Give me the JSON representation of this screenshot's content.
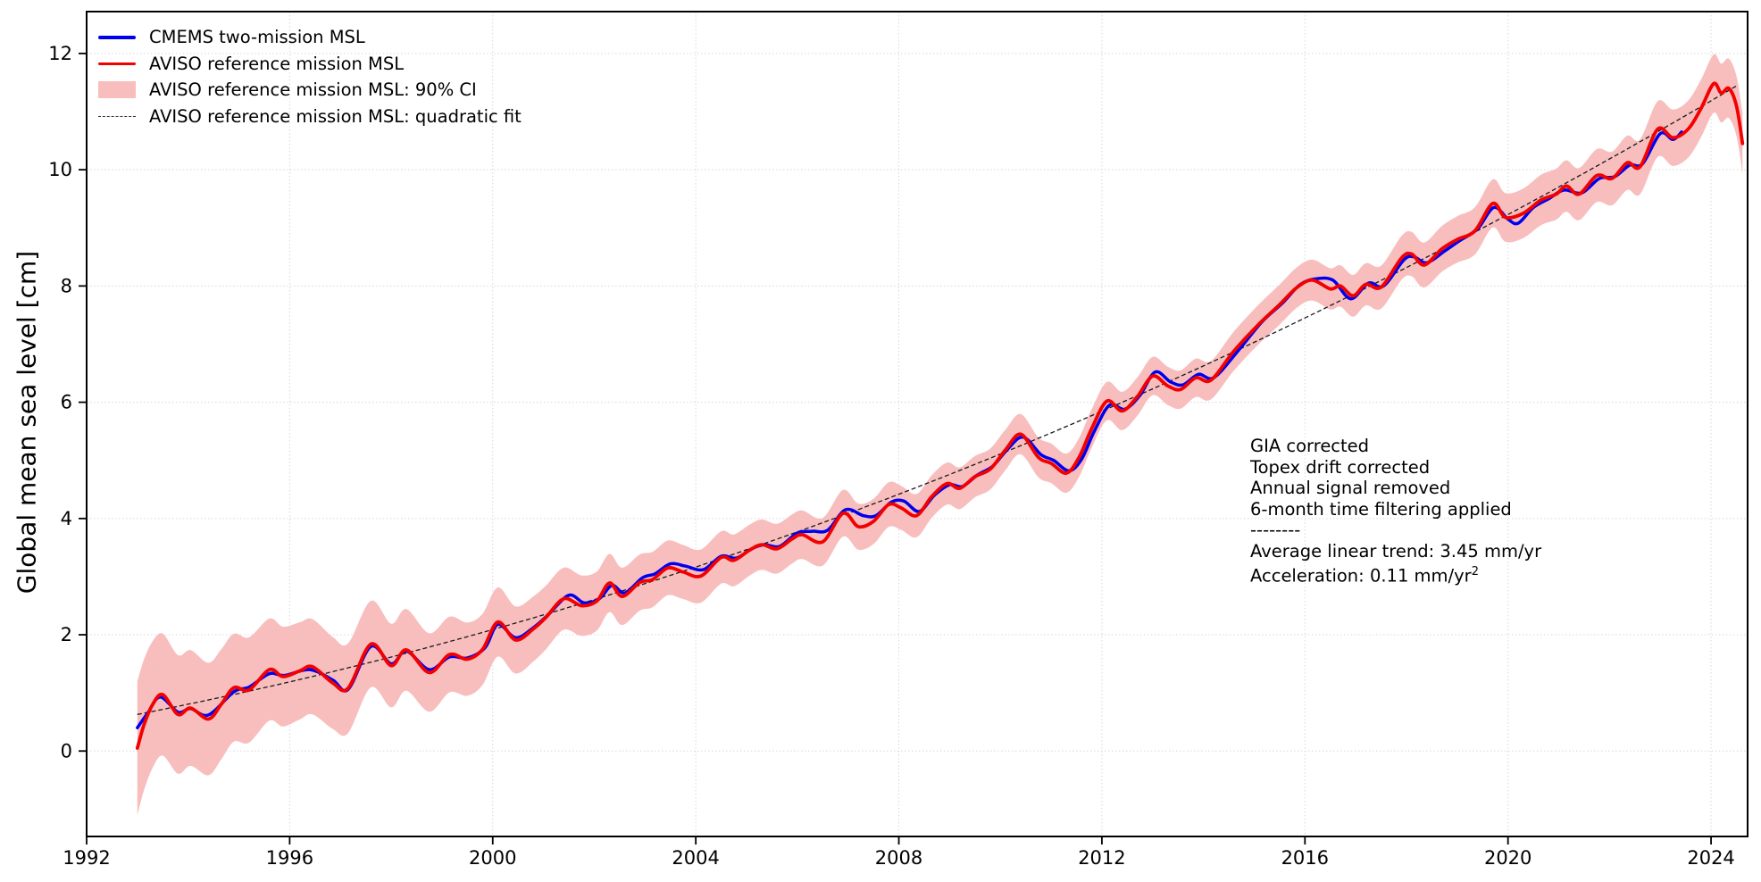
{
  "chart_data": {
    "type": "line",
    "title": "",
    "xlabel": "",
    "ylabel": "Global mean sea level [cm]",
    "xlim": [
      1992,
      2024.72
    ],
    "ylim": [
      -1.47,
      12.72
    ],
    "x_ticks": [
      1992,
      1996,
      2000,
      2004,
      2008,
      2012,
      2016,
      2020,
      2024
    ],
    "y_ticks": [
      0,
      2,
      4,
      6,
      8,
      10,
      12
    ],
    "grid": "dotted",
    "legend_position": "upper-left",
    "style": {
      "cmems_color": "#0000ee",
      "aviso_color": "#f30000",
      "ci_color": "#f8bebe",
      "fit_color": "#1a1a1a",
      "grid_color": "#d8d8d8",
      "spine_color": "#000000"
    },
    "series": [
      {
        "name": "CMEMS two-mission MSL",
        "type": "line",
        "color": "#0000ee",
        "points": [
          [
            1993.0,
            0.4
          ],
          [
            1993.2,
            0.65
          ],
          [
            1993.45,
            0.93
          ],
          [
            1993.8,
            0.67
          ],
          [
            1994.05,
            0.73
          ],
          [
            1994.4,
            0.62
          ],
          [
            1994.9,
            1.02
          ],
          [
            1995.2,
            1.1
          ],
          [
            1995.6,
            1.33
          ],
          [
            1995.9,
            1.3
          ],
          [
            1996.4,
            1.4
          ],
          [
            1996.85,
            1.22
          ],
          [
            1997.15,
            1.06
          ],
          [
            1997.6,
            1.8
          ],
          [
            1998.0,
            1.5
          ],
          [
            1998.3,
            1.72
          ],
          [
            1998.75,
            1.4
          ],
          [
            1999.15,
            1.62
          ],
          [
            1999.5,
            1.6
          ],
          [
            1999.85,
            1.78
          ],
          [
            2000.1,
            2.18
          ],
          [
            2000.45,
            1.95
          ],
          [
            2000.8,
            2.12
          ],
          [
            2001.1,
            2.35
          ],
          [
            2001.5,
            2.68
          ],
          [
            2001.8,
            2.55
          ],
          [
            2002.1,
            2.62
          ],
          [
            2002.35,
            2.85
          ],
          [
            2002.6,
            2.72
          ],
          [
            2002.95,
            2.98
          ],
          [
            2003.2,
            3.05
          ],
          [
            2003.5,
            3.22
          ],
          [
            2003.8,
            3.18
          ],
          [
            2004.15,
            3.12
          ],
          [
            2004.5,
            3.35
          ],
          [
            2004.8,
            3.32
          ],
          [
            2005.1,
            3.48
          ],
          [
            2005.35,
            3.55
          ],
          [
            2005.65,
            3.52
          ],
          [
            2006.0,
            3.75
          ],
          [
            2006.3,
            3.78
          ],
          [
            2006.6,
            3.8
          ],
          [
            2006.95,
            4.15
          ],
          [
            2007.3,
            4.05
          ],
          [
            2007.55,
            4.05
          ],
          [
            2007.85,
            4.28
          ],
          [
            2008.1,
            4.3
          ],
          [
            2008.4,
            4.12
          ],
          [
            2008.7,
            4.4
          ],
          [
            2009.0,
            4.58
          ],
          [
            2009.25,
            4.55
          ],
          [
            2009.55,
            4.75
          ],
          [
            2009.85,
            4.9
          ],
          [
            2010.15,
            5.2
          ],
          [
            2010.45,
            5.4
          ],
          [
            2010.8,
            5.1
          ],
          [
            2011.05,
            5.0
          ],
          [
            2011.35,
            4.82
          ],
          [
            2011.6,
            5.02
          ],
          [
            2011.85,
            5.5
          ],
          [
            2012.15,
            5.95
          ],
          [
            2012.45,
            5.88
          ],
          [
            2012.75,
            6.12
          ],
          [
            2013.05,
            6.52
          ],
          [
            2013.35,
            6.35
          ],
          [
            2013.6,
            6.3
          ],
          [
            2013.9,
            6.48
          ],
          [
            2014.2,
            6.42
          ],
          [
            2014.65,
            6.85
          ],
          [
            2015.15,
            7.38
          ],
          [
            2015.55,
            7.7
          ],
          [
            2015.9,
            8.02
          ],
          [
            2016.2,
            8.12
          ],
          [
            2016.55,
            8.1
          ],
          [
            2016.9,
            7.78
          ],
          [
            2017.25,
            8.05
          ],
          [
            2017.55,
            8.0
          ],
          [
            2017.95,
            8.45
          ],
          [
            2018.15,
            8.5
          ],
          [
            2018.4,
            8.4
          ],
          [
            2018.75,
            8.6
          ],
          [
            2019.05,
            8.78
          ],
          [
            2019.4,
            8.98
          ],
          [
            2019.72,
            9.35
          ],
          [
            2020.0,
            9.15
          ],
          [
            2020.2,
            9.08
          ],
          [
            2020.5,
            9.35
          ],
          [
            2020.8,
            9.5
          ],
          [
            2021.1,
            9.65
          ],
          [
            2021.45,
            9.6
          ],
          [
            2021.8,
            9.85
          ],
          [
            2022.1,
            9.88
          ],
          [
            2022.4,
            10.08
          ],
          [
            2022.65,
            10.1
          ],
          [
            2023.0,
            10.62
          ],
          [
            2023.25,
            10.52
          ],
          [
            2023.42,
            10.65
          ]
        ]
      },
      {
        "name": "AVISO reference mission MSL",
        "type": "line",
        "color": "#f30000",
        "points": [
          [
            1993.0,
            0.05
          ],
          [
            1993.13,
            0.45
          ],
          [
            1993.3,
            0.8
          ],
          [
            1993.5,
            0.97
          ],
          [
            1993.8,
            0.63
          ],
          [
            1994.05,
            0.74
          ],
          [
            1994.4,
            0.55
          ],
          [
            1994.65,
            0.8
          ],
          [
            1994.9,
            1.09
          ],
          [
            1995.2,
            1.05
          ],
          [
            1995.6,
            1.4
          ],
          [
            1995.87,
            1.28
          ],
          [
            1996.2,
            1.38
          ],
          [
            1996.45,
            1.45
          ],
          [
            1996.85,
            1.17
          ],
          [
            1997.15,
            1.08
          ],
          [
            1997.6,
            1.84
          ],
          [
            1998.0,
            1.47
          ],
          [
            1998.3,
            1.74
          ],
          [
            1998.75,
            1.35
          ],
          [
            1999.15,
            1.66
          ],
          [
            1999.5,
            1.58
          ],
          [
            1999.8,
            1.75
          ],
          [
            2000.1,
            2.22
          ],
          [
            2000.45,
            1.91
          ],
          [
            2000.8,
            2.1
          ],
          [
            2001.05,
            2.3
          ],
          [
            2001.4,
            2.62
          ],
          [
            2001.75,
            2.5
          ],
          [
            2002.05,
            2.58
          ],
          [
            2002.3,
            2.89
          ],
          [
            2002.55,
            2.66
          ],
          [
            2002.9,
            2.9
          ],
          [
            2003.15,
            2.95
          ],
          [
            2003.45,
            3.15
          ],
          [
            2003.75,
            3.08
          ],
          [
            2004.1,
            3.01
          ],
          [
            2004.5,
            3.33
          ],
          [
            2004.75,
            3.28
          ],
          [
            2005.05,
            3.45
          ],
          [
            2005.3,
            3.55
          ],
          [
            2005.6,
            3.48
          ],
          [
            2005.9,
            3.65
          ],
          [
            2006.1,
            3.72
          ],
          [
            2006.5,
            3.6
          ],
          [
            2006.9,
            4.09
          ],
          [
            2007.2,
            3.86
          ],
          [
            2007.5,
            3.95
          ],
          [
            2007.8,
            4.24
          ],
          [
            2008.05,
            4.18
          ],
          [
            2008.35,
            4.05
          ],
          [
            2008.65,
            4.38
          ],
          [
            2008.95,
            4.6
          ],
          [
            2009.2,
            4.52
          ],
          [
            2009.5,
            4.72
          ],
          [
            2009.8,
            4.85
          ],
          [
            2010.1,
            5.18
          ],
          [
            2010.4,
            5.45
          ],
          [
            2010.75,
            5.05
          ],
          [
            2011.0,
            4.95
          ],
          [
            2011.3,
            4.78
          ],
          [
            2011.55,
            5.05
          ],
          [
            2011.8,
            5.55
          ],
          [
            2012.1,
            6.02
          ],
          [
            2012.4,
            5.85
          ],
          [
            2012.7,
            6.1
          ],
          [
            2013.0,
            6.45
          ],
          [
            2013.3,
            6.28
          ],
          [
            2013.55,
            6.22
          ],
          [
            2013.85,
            6.42
          ],
          [
            2014.15,
            6.38
          ],
          [
            2014.6,
            6.88
          ],
          [
            2015.1,
            7.35
          ],
          [
            2015.5,
            7.68
          ],
          [
            2015.85,
            7.98
          ],
          [
            2016.15,
            8.1
          ],
          [
            2016.5,
            7.95
          ],
          [
            2016.7,
            8.0
          ],
          [
            2016.95,
            7.83
          ],
          [
            2017.2,
            8.03
          ],
          [
            2017.5,
            7.98
          ],
          [
            2017.9,
            8.48
          ],
          [
            2018.1,
            8.55
          ],
          [
            2018.35,
            8.36
          ],
          [
            2018.7,
            8.64
          ],
          [
            2019.0,
            8.8
          ],
          [
            2019.35,
            8.95
          ],
          [
            2019.7,
            9.42
          ],
          [
            2019.95,
            9.18
          ],
          [
            2020.3,
            9.25
          ],
          [
            2020.65,
            9.48
          ],
          [
            2020.95,
            9.58
          ],
          [
            2021.15,
            9.72
          ],
          [
            2021.4,
            9.58
          ],
          [
            2021.75,
            9.9
          ],
          [
            2022.05,
            9.85
          ],
          [
            2022.35,
            10.12
          ],
          [
            2022.6,
            10.05
          ],
          [
            2022.95,
            10.7
          ],
          [
            2023.25,
            10.55
          ],
          [
            2023.55,
            10.7
          ],
          [
            2023.8,
            11.05
          ],
          [
            2024.05,
            11.48
          ],
          [
            2024.2,
            11.32
          ],
          [
            2024.35,
            11.4
          ],
          [
            2024.5,
            11.1
          ],
          [
            2024.62,
            10.45
          ]
        ]
      },
      {
        "name": "AVISO reference mission MSL: 90% CI",
        "type": "band",
        "color": "#f8bebe",
        "center_series": "AVISO reference mission MSL",
        "halfwidth": [
          [
            1993.0,
            1.15
          ],
          [
            1993.5,
            1.05
          ],
          [
            1994.0,
            1.0
          ],
          [
            1995.0,
            0.92
          ],
          [
            1996.0,
            0.85
          ],
          [
            1997.0,
            0.78
          ],
          [
            1998.0,
            0.72
          ],
          [
            1999.0,
            0.66
          ],
          [
            2000.0,
            0.6
          ],
          [
            2001.0,
            0.55
          ],
          [
            2002.0,
            0.51
          ],
          [
            2003.0,
            0.48
          ],
          [
            2004.0,
            0.46
          ],
          [
            2005.0,
            0.44
          ],
          [
            2006.0,
            0.42
          ],
          [
            2007.0,
            0.4
          ],
          [
            2008.0,
            0.38
          ],
          [
            2009.0,
            0.36
          ],
          [
            2010.0,
            0.35
          ],
          [
            2011.0,
            0.34
          ],
          [
            2012.0,
            0.33
          ],
          [
            2013.0,
            0.33
          ],
          [
            2014.0,
            0.33
          ],
          [
            2015.0,
            0.34
          ],
          [
            2016.0,
            0.35
          ],
          [
            2017.0,
            0.36
          ],
          [
            2018.0,
            0.38
          ],
          [
            2019.0,
            0.4
          ],
          [
            2020.0,
            0.42
          ],
          [
            2021.0,
            0.44
          ],
          [
            2022.0,
            0.46
          ],
          [
            2023.0,
            0.48
          ],
          [
            2024.0,
            0.5
          ],
          [
            2024.62,
            0.52
          ]
        ]
      },
      {
        "name": "AVISO reference mission MSL: quadratic fit",
        "type": "quadratic",
        "color": "#1a1a1a",
        "base_year": 1993,
        "coeffs": [
          0.63,
          0.17,
          0.0055
        ],
        "domain": [
          1993.0,
          2024.72
        ]
      }
    ]
  },
  "legend": {
    "items": [
      {
        "label": "CMEMS two-mission MSL"
      },
      {
        "label": "AVISO reference mission MSL"
      },
      {
        "label": "AVISO reference mission MSL: 90% CI"
      },
      {
        "label": "AVISO reference mission MSL: quadratic fit"
      }
    ]
  },
  "annotation": {
    "lines": [
      "GIA corrected",
      "Topex drift corrected",
      "Annual signal removed",
      "6-month time filtering applied",
      "--------",
      "Average linear trend: 3.45 mm/yr"
    ],
    "accel_text": "Acceleration: 0.11 mm/yr",
    "accel_sup": "2",
    "trend_value": "3.45 mm/yr",
    "acceleration_value": "0.11 mm/yr2"
  }
}
